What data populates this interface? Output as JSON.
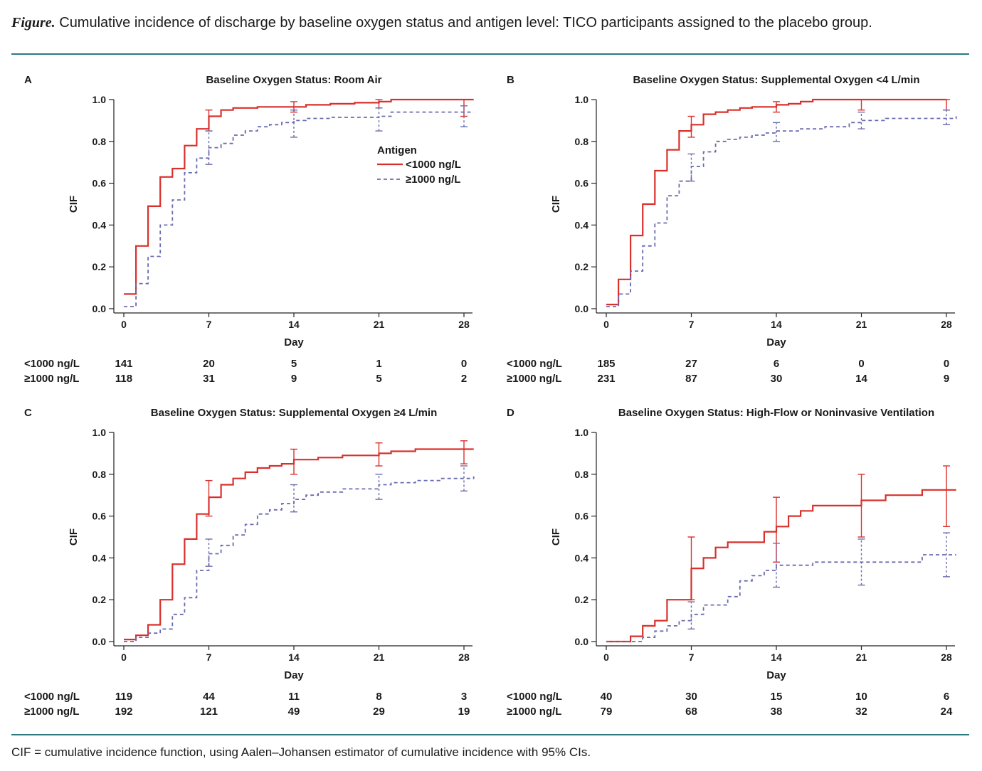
{
  "figure": {
    "title_lead": "Figure.",
    "title_rest": " Cumulative incidence of discharge by baseline oxygen status and antigen level: TICO participants assigned to the placebo group.",
    "footnote": "CIF = cumulative incidence function, using Aalen–Johansen estimator of cumulative incidence with 95% CIs.",
    "colors": {
      "rule": "#2d7a82",
      "low_antigen": "#d9302c",
      "high_antigen": "#6b6bb0"
    }
  },
  "chart_data": [
    {
      "id": "A",
      "type": "line",
      "step": true,
      "title": "Baseline Oxygen Status: Room Air",
      "xlabel": "Day",
      "ylabel": "CIF",
      "xlim": [
        0,
        28
      ],
      "ylim": [
        0,
        1
      ],
      "xticks": [
        "0",
        "7",
        "14",
        "21",
        "28"
      ],
      "yticks": [
        "0.0",
        "0.2",
        "0.4",
        "0.6",
        "0.8",
        "1.0"
      ],
      "legend": {
        "title": "Antigen",
        "position": "inside-center-right",
        "entries": [
          "<1000 ng/L",
          "≥1000 ng/L"
        ]
      },
      "series": [
        {
          "name": "<1000 ng/L",
          "style": "solid",
          "x": [
            0,
            1,
            2,
            3,
            4,
            5,
            6,
            7,
            8,
            9,
            11,
            14,
            15,
            17,
            19,
            21,
            22,
            28.8
          ],
          "y": [
            0.07,
            0.3,
            0.49,
            0.63,
            0.67,
            0.78,
            0.86,
            0.92,
            0.95,
            0.96,
            0.965,
            0.965,
            0.975,
            0.98,
            0.985,
            0.99,
            1.0,
            1.0
          ],
          "ci": [
            {
              "x": 7,
              "lo": 0.85,
              "hi": 0.95
            },
            {
              "x": 14,
              "lo": 0.94,
              "hi": 0.99
            },
            {
              "x": 21,
              "lo": 0.96,
              "hi": 1.0
            },
            {
              "x": 28,
              "lo": 0.92,
              "hi": 1.0
            }
          ]
        },
        {
          "name": "≥1000 ng/L",
          "style": "dashed",
          "x": [
            0,
            1,
            2,
            3,
            4,
            5,
            6,
            7,
            8,
            9,
            10,
            11,
            12,
            13,
            14,
            15,
            17,
            21,
            22,
            28.8
          ],
          "y": [
            0.01,
            0.12,
            0.25,
            0.4,
            0.52,
            0.65,
            0.72,
            0.77,
            0.79,
            0.83,
            0.85,
            0.87,
            0.88,
            0.89,
            0.9,
            0.91,
            0.915,
            0.92,
            0.94,
            0.94
          ],
          "ci": [
            {
              "x": 7,
              "lo": 0.69,
              "hi": 0.85
            },
            {
              "x": 14,
              "lo": 0.82,
              "hi": 0.95
            },
            {
              "x": 21,
              "lo": 0.85,
              "hi": 0.96
            },
            {
              "x": 28,
              "lo": 0.87,
              "hi": 0.97
            }
          ]
        }
      ],
      "risk_table": [
        {
          "label": "<1000 ng/L",
          "values": [
            "141",
            "20",
            "5",
            "1",
            "0"
          ]
        },
        {
          "label": "≥1000 ng/L",
          "values": [
            "118",
            "31",
            "9",
            "5",
            "2"
          ]
        }
      ]
    },
    {
      "id": "B",
      "type": "line",
      "step": true,
      "title": "Baseline Oxygen Status: Supplemental Oxygen <4 L/min",
      "xlabel": "Day",
      "ylabel": "CIF",
      "xlim": [
        0,
        28
      ],
      "ylim": [
        0,
        1
      ],
      "xticks": [
        "0",
        "7",
        "14",
        "21",
        "28"
      ],
      "yticks": [
        "0.0",
        "0.2",
        "0.4",
        "0.6",
        "0.8",
        "1.0"
      ],
      "series": [
        {
          "name": "<1000 ng/L",
          "style": "solid",
          "x": [
            0,
            1,
            2,
            3,
            4,
            5,
            6,
            7,
            8,
            9,
            10,
            11,
            12,
            14,
            15,
            16,
            17,
            21,
            28
          ],
          "y": [
            0.02,
            0.14,
            0.35,
            0.5,
            0.66,
            0.76,
            0.85,
            0.88,
            0.93,
            0.94,
            0.95,
            0.96,
            0.965,
            0.975,
            0.98,
            0.99,
            1.0,
            1.0,
            1.0
          ],
          "ci": [
            {
              "x": 7,
              "lo": 0.82,
              "hi": 0.92
            },
            {
              "x": 14,
              "lo": 0.94,
              "hi": 0.99
            },
            {
              "x": 21,
              "lo": 0.95,
              "hi": 1.0
            },
            {
              "x": 28,
              "lo": 0.95,
              "hi": 1.0
            }
          ]
        },
        {
          "name": "≥1000 ng/L",
          "style": "dashed",
          "x": [
            0,
            1,
            2,
            3,
            4,
            5,
            6,
            7,
            8,
            9,
            10,
            11,
            12,
            13,
            14,
            16,
            18,
            20,
            21,
            23,
            28.8
          ],
          "y": [
            0.01,
            0.07,
            0.18,
            0.3,
            0.41,
            0.54,
            0.61,
            0.68,
            0.75,
            0.8,
            0.81,
            0.82,
            0.83,
            0.84,
            0.85,
            0.86,
            0.87,
            0.89,
            0.9,
            0.91,
            0.92
          ],
          "ci": [
            {
              "x": 7,
              "lo": 0.61,
              "hi": 0.74
            },
            {
              "x": 14,
              "lo": 0.8,
              "hi": 0.89
            },
            {
              "x": 21,
              "lo": 0.86,
              "hi": 0.94
            },
            {
              "x": 28,
              "lo": 0.88,
              "hi": 0.95
            }
          ]
        }
      ],
      "risk_table": [
        {
          "label": "<1000 ng/L",
          "values": [
            "185",
            "27",
            "6",
            "0",
            "0"
          ]
        },
        {
          "label": "≥1000 ng/L",
          "values": [
            "231",
            "87",
            "30",
            "14",
            "9"
          ]
        }
      ]
    },
    {
      "id": "C",
      "type": "line",
      "step": true,
      "title": "Baseline Oxygen Status: Supplemental Oxygen ≥4 L/min",
      "xlabel": "Day",
      "ylabel": "CIF",
      "xlim": [
        0,
        28
      ],
      "ylim": [
        0,
        1
      ],
      "xticks": [
        "0",
        "7",
        "14",
        "21",
        "28"
      ],
      "yticks": [
        "0.0",
        "0.2",
        "0.4",
        "0.6",
        "0.8",
        "1.0"
      ],
      "series": [
        {
          "name": "<1000 ng/L",
          "style": "solid",
          "x": [
            0,
            1,
            2,
            3,
            4,
            5,
            6,
            7,
            8,
            9,
            10,
            11,
            12,
            13,
            14,
            16,
            18,
            21,
            22,
            24,
            28.8
          ],
          "y": [
            0.01,
            0.03,
            0.08,
            0.2,
            0.37,
            0.49,
            0.61,
            0.69,
            0.75,
            0.78,
            0.81,
            0.83,
            0.84,
            0.85,
            0.87,
            0.88,
            0.89,
            0.9,
            0.91,
            0.92,
            0.92
          ],
          "ci": [
            {
              "x": 7,
              "lo": 0.6,
              "hi": 0.77
            },
            {
              "x": 14,
              "lo": 0.8,
              "hi": 0.92
            },
            {
              "x": 21,
              "lo": 0.84,
              "hi": 0.95
            },
            {
              "x": 28,
              "lo": 0.85,
              "hi": 0.96
            }
          ]
        },
        {
          "name": "≥1000 ng/L",
          "style": "dashed",
          "x": [
            0,
            1,
            2,
            3,
            4,
            5,
            6,
            7,
            8,
            9,
            10,
            11,
            12,
            13,
            14,
            15,
            16,
            18,
            21,
            22,
            24,
            26,
            28.8
          ],
          "y": [
            0.0,
            0.02,
            0.04,
            0.06,
            0.13,
            0.21,
            0.34,
            0.42,
            0.46,
            0.51,
            0.56,
            0.61,
            0.63,
            0.66,
            0.68,
            0.7,
            0.715,
            0.73,
            0.75,
            0.76,
            0.77,
            0.78,
            0.79
          ],
          "ci": [
            {
              "x": 7,
              "lo": 0.36,
              "hi": 0.49
            },
            {
              "x": 14,
              "lo": 0.62,
              "hi": 0.75
            },
            {
              "x": 21,
              "lo": 0.68,
              "hi": 0.8
            },
            {
              "x": 28,
              "lo": 0.72,
              "hi": 0.84
            }
          ]
        }
      ],
      "risk_table": [
        {
          "label": "<1000 ng/L",
          "values": [
            "119",
            "44",
            "11",
            "8",
            "3"
          ]
        },
        {
          "label": "≥1000 ng/L",
          "values": [
            "192",
            "121",
            "49",
            "29",
            "19"
          ]
        }
      ]
    },
    {
      "id": "D",
      "type": "line",
      "step": true,
      "title": "Baseline Oxygen Status: High-Flow or Noninvasive Ventilation",
      "xlabel": "Day",
      "ylabel": "CIF",
      "xlim": [
        0,
        28
      ],
      "ylim": [
        0,
        1
      ],
      "xticks": [
        "0",
        "7",
        "14",
        "21",
        "28"
      ],
      "yticks": [
        "0.0",
        "0.2",
        "0.4",
        "0.6",
        "0.8",
        "1.0"
      ],
      "series": [
        {
          "name": "<1000 ng/L",
          "style": "solid",
          "x": [
            0,
            2,
            3,
            4,
            5,
            7,
            8,
            9,
            10,
            11,
            13,
            14,
            15,
            16,
            17,
            21,
            23,
            26,
            28.8
          ],
          "y": [
            0.0,
            0.025,
            0.075,
            0.1,
            0.2,
            0.35,
            0.4,
            0.45,
            0.475,
            0.475,
            0.525,
            0.55,
            0.6,
            0.625,
            0.65,
            0.675,
            0.7,
            0.725,
            0.725
          ],
          "ci": [
            {
              "x": 7,
              "lo": 0.2,
              "hi": 0.5
            },
            {
              "x": 14,
              "lo": 0.38,
              "hi": 0.69
            },
            {
              "x": 21,
              "lo": 0.5,
              "hi": 0.8
            },
            {
              "x": 28,
              "lo": 0.55,
              "hi": 0.84
            }
          ]
        },
        {
          "name": "≥1000 ng/L",
          "style": "dashed",
          "x": [
            0,
            3,
            4,
            5,
            6,
            7,
            8,
            10,
            11,
            12,
            13,
            14,
            17,
            26,
            28.8
          ],
          "y": [
            0.0,
            0.02,
            0.05,
            0.075,
            0.1,
            0.13,
            0.175,
            0.215,
            0.29,
            0.315,
            0.34,
            0.365,
            0.38,
            0.415,
            0.415
          ],
          "ci": [
            {
              "x": 7,
              "lo": 0.06,
              "hi": 0.19
            },
            {
              "x": 14,
              "lo": 0.26,
              "hi": 0.47
            },
            {
              "x": 21,
              "lo": 0.27,
              "hi": 0.49
            },
            {
              "x": 28,
              "lo": 0.31,
              "hi": 0.52
            }
          ]
        }
      ],
      "risk_table": [
        {
          "label": "<1000 ng/L",
          "values": [
            "40",
            "30",
            "15",
            "10",
            "6"
          ]
        },
        {
          "label": "≥1000 ng/L",
          "values": [
            "79",
            "68",
            "38",
            "32",
            "24"
          ]
        }
      ]
    }
  ]
}
